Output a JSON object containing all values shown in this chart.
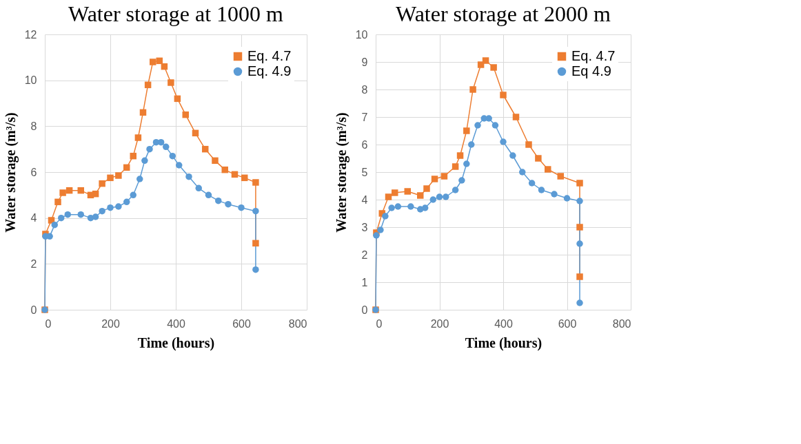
{
  "chart_data": [
    {
      "type": "line",
      "title": "Water storage at 1000 m",
      "xlabel": "Time (hours)",
      "ylabel": "Water storage (m³/s)",
      "xlim": [
        0,
        800
      ],
      "xticks": [
        0,
        200,
        400,
        600,
        800
      ],
      "ylim": [
        0,
        12
      ],
      "yticks": [
        0,
        2,
        4,
        6,
        8,
        10,
        12
      ],
      "grid": true,
      "legend": "top right",
      "series": [
        {
          "name": "Eq. 4.7",
          "color": "#ed7d31",
          "marker": "square",
          "x": [
            0,
            2,
            20,
            40,
            55,
            75,
            110,
            140,
            155,
            175,
            200,
            225,
            250,
            270,
            285,
            300,
            315,
            330,
            350,
            365,
            385,
            405,
            430,
            460,
            490,
            520,
            550,
            580,
            610,
            644,
            644
          ],
          "values": [
            0,
            3.3,
            3.9,
            4.7,
            5.1,
            5.2,
            5.2,
            5.0,
            5.05,
            5.5,
            5.75,
            5.85,
            6.2,
            6.7,
            7.5,
            8.6,
            9.8,
            10.8,
            10.85,
            10.6,
            9.9,
            9.2,
            8.5,
            7.7,
            7.0,
            6.5,
            6.1,
            5.9,
            5.75,
            5.55,
            2.9
          ]
        },
        {
          "name": "Eq. 4.9",
          "color": "#5b9bd5",
          "marker": "circle",
          "x": [
            0,
            2,
            15,
            30,
            50,
            70,
            110,
            140,
            155,
            175,
            200,
            225,
            250,
            270,
            290,
            305,
            320,
            340,
            355,
            370,
            390,
            410,
            440,
            470,
            500,
            530,
            560,
            600,
            644,
            644
          ],
          "values": [
            0,
            3.2,
            3.2,
            3.7,
            4.0,
            4.15,
            4.15,
            4.0,
            4.05,
            4.3,
            4.45,
            4.5,
            4.7,
            5.0,
            5.7,
            6.5,
            7.0,
            7.3,
            7.3,
            7.1,
            6.7,
            6.3,
            5.8,
            5.3,
            5.0,
            4.75,
            4.6,
            4.45,
            4.3,
            1.75
          ]
        }
      ]
    },
    {
      "type": "line",
      "title": "Water storage at 2000 m",
      "xlabel": "Time (hours)",
      "ylabel": "Water storage (m³/s)",
      "xlim": [
        0,
        800
      ],
      "xticks": [
        0,
        200,
        400,
        600,
        800
      ],
      "ylim": [
        0,
        10
      ],
      "yticks": [
        0,
        1,
        2,
        3,
        4,
        5,
        6,
        7,
        8,
        9,
        10
      ],
      "grid": true,
      "legend": "top right",
      "series": [
        {
          "name": "Eq. 4.7",
          "color": "#ed7d31",
          "marker": "square",
          "x": [
            0,
            2,
            20,
            40,
            60,
            100,
            140,
            160,
            185,
            215,
            250,
            265,
            285,
            305,
            330,
            345,
            370,
            400,
            440,
            480,
            510,
            540,
            580,
            640,
            640,
            640
          ],
          "values": [
            0,
            2.8,
            3.5,
            4.1,
            4.25,
            4.3,
            4.15,
            4.4,
            4.75,
            4.85,
            5.2,
            5.6,
            6.5,
            8.0,
            8.9,
            9.05,
            8.8,
            7.8,
            7.0,
            6.0,
            5.5,
            5.1,
            4.85,
            4.6,
            3.0,
            1.2
          ]
        },
        {
          "name": "Eq 4.9",
          "color": "#5b9bd5",
          "marker": "circle",
          "x": [
            0,
            2,
            15,
            30,
            50,
            70,
            110,
            140,
            155,
            180,
            200,
            220,
            250,
            270,
            285,
            300,
            320,
            340,
            355,
            375,
            400,
            430,
            460,
            490,
            520,
            560,
            600,
            640,
            640,
            640
          ],
          "values": [
            0,
            2.7,
            2.9,
            3.4,
            3.7,
            3.75,
            3.75,
            3.65,
            3.7,
            4.0,
            4.1,
            4.1,
            4.35,
            4.7,
            5.3,
            6.0,
            6.7,
            6.95,
            6.95,
            6.7,
            6.1,
            5.6,
            5.0,
            4.6,
            4.35,
            4.2,
            4.05,
            3.95,
            2.4,
            0.25
          ]
        }
      ]
    }
  ]
}
